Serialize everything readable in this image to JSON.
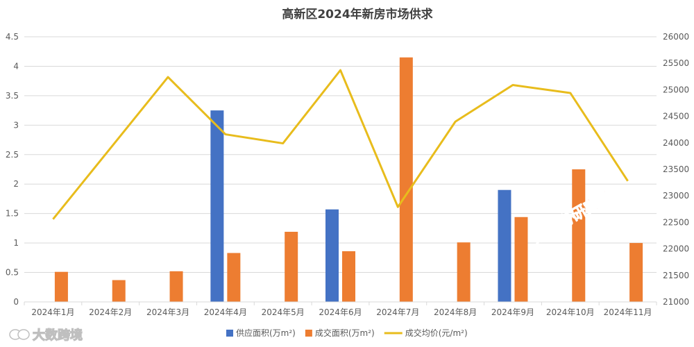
{
  "chart_data": {
    "type": "bar",
    "title": "高新区2024年新房市场供求",
    "categories": [
      "2024年1月",
      "2024年2月",
      "2024年3月",
      "2024年4月",
      "2024年5月",
      "2024年6月",
      "2024年7月",
      "2024年8月",
      "2024年9月",
      "2024年10月",
      "2024年11月"
    ],
    "series": [
      {
        "name": "供应面积(万m²)",
        "type": "bar",
        "axis": "left",
        "color": "#4472c4",
        "values": [
          0,
          0,
          0,
          3.25,
          0,
          1.57,
          0,
          0,
          1.9,
          0,
          0
        ]
      },
      {
        "name": "成交面积(万m²)",
        "type": "bar",
        "axis": "left",
        "color": "#ed7d31",
        "values": [
          0.51,
          0.37,
          0.52,
          0.83,
          1.19,
          0.86,
          4.15,
          1.01,
          1.44,
          2.25,
          1.0
        ]
      },
      {
        "name": "成交均价(元/m²)",
        "type": "line",
        "axis": "right",
        "color": "#e8bc1c",
        "values": [
          22560,
          23900,
          25240,
          24160,
          23990,
          25370,
          22790,
          24400,
          25090,
          24940,
          23280
        ]
      }
    ],
    "y_left": {
      "min": 0,
      "max": 4.5,
      "ticks": [
        "0",
        "0.5",
        "1",
        "1.5",
        "2",
        "2.5",
        "3",
        "3.5",
        "4",
        "4.5"
      ]
    },
    "y_right": {
      "min": 21000,
      "max": 26000,
      "ticks": [
        "21000",
        "21500",
        "22000",
        "22500",
        "23000",
        "23500",
        "24000",
        "24500",
        "25000",
        "25500",
        "26000"
      ]
    },
    "grid": true,
    "legend_position": "bottom"
  },
  "watermarks": {
    "red": "第一房研究院",
    "gray": "大数跨境"
  }
}
